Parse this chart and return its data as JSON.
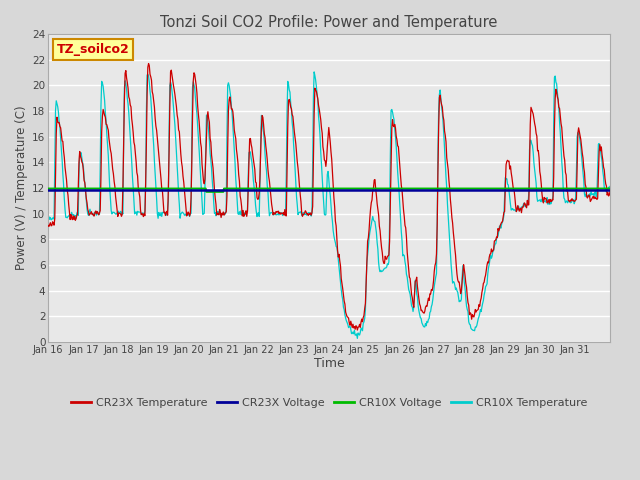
{
  "title": "Tonzi Soil CO2 Profile: Power and Temperature",
  "xlabel": "Time",
  "ylabel": "Power (V) / Temperature (C)",
  "ylim": [
    0,
    24
  ],
  "yticks": [
    0,
    2,
    4,
    6,
    8,
    10,
    12,
    14,
    16,
    18,
    20,
    22,
    24
  ],
  "x_labels": [
    "Jan 16",
    "Jan 17",
    "Jan 18",
    "Jan 19",
    "Jan 20",
    "Jan 21",
    "Jan 22",
    "Jan 23",
    "Jan 24",
    "Jan 25",
    "Jan 26",
    "Jan 27",
    "Jan 28",
    "Jan 29",
    "Jan 30",
    "Jan 31"
  ],
  "n_days": 16,
  "cr23x_temp_color": "#cc0000",
  "cr23x_volt_color": "#000099",
  "cr10x_volt_color": "#00bb00",
  "cr10x_temp_color": "#00cccc",
  "voltage_level": 11.9,
  "label_box_text": "TZ_soilco2",
  "label_box_color": "#ffff99",
  "label_box_edge": "#cc8800",
  "background_color": "#d8d8d8",
  "plot_bg_color": "#e8e8e8",
  "grid_color": "#c8c8c8",
  "title_color": "#444444",
  "axis_label_color": "#444444",
  "tick_label_color": "#444444"
}
